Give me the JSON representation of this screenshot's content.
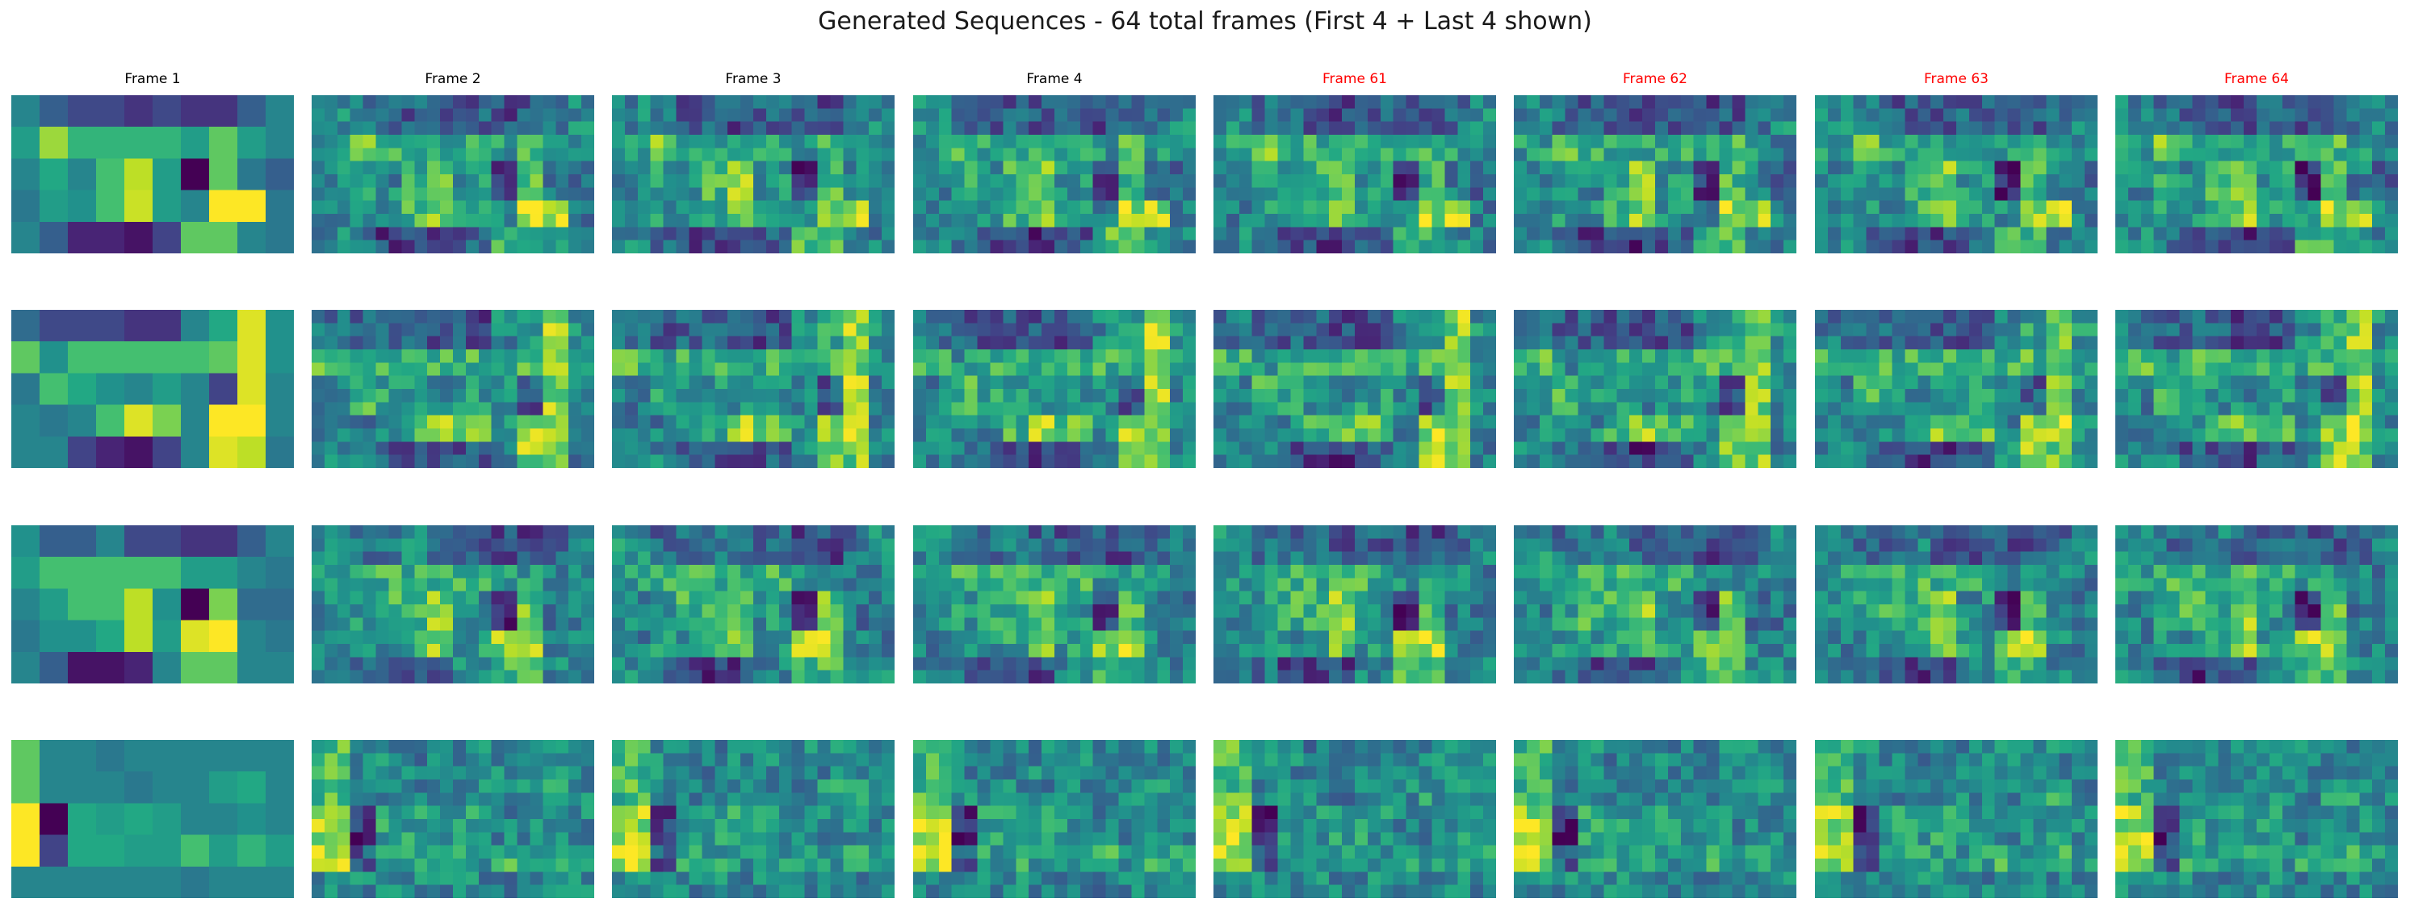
{
  "figure": {
    "title": "Generated Sequences - 64 total frames (First 4 + Last 4 shown)"
  },
  "colors": {
    "title": "#1a1a1a",
    "first_label": "#000000",
    "last_label": "#ff0000",
    "colormap": "viridis"
  },
  "chart_data": {
    "type": "heatmap",
    "title": "Generated Sequences - 64 total frames (First 4 + Last 4 shown)",
    "colormap": "viridis",
    "axes_visible": false,
    "columns": [
      {
        "label": "Frame 1",
        "color": "#000000"
      },
      {
        "label": "Frame 2",
        "color": "#000000"
      },
      {
        "label": "Frame 3",
        "color": "#000000"
      },
      {
        "label": "Frame 4",
        "color": "#000000"
      },
      {
        "label": "Frame 61",
        "color": "#ff0000"
      },
      {
        "label": "Frame 62",
        "color": "#ff0000"
      },
      {
        "label": "Frame 63",
        "color": "#ff0000"
      },
      {
        "label": "Frame 64",
        "color": "#ff0000"
      }
    ],
    "sequences": [
      {
        "frame1": [
          [
            0.45,
            0.3,
            0.22,
            0.22,
            0.15,
            0.22,
            0.15,
            0.15,
            0.3,
            0.45
          ],
          [
            0.55,
            0.85,
            0.65,
            0.65,
            0.65,
            0.65,
            0.55,
            0.75,
            0.55,
            0.45
          ],
          [
            0.45,
            0.6,
            0.45,
            0.7,
            0.9,
            0.55,
            0.0,
            0.75,
            0.4,
            0.3
          ],
          [
            0.4,
            0.55,
            0.5,
            0.7,
            0.92,
            0.55,
            0.45,
            1.0,
            1.0,
            0.4
          ],
          [
            0.45,
            0.3,
            0.1,
            0.1,
            0.05,
            0.2,
            0.75,
            0.75,
            0.45,
            0.4
          ]
        ]
      },
      {
        "frame1": [
          [
            0.35,
            0.22,
            0.22,
            0.22,
            0.15,
            0.15,
            0.45,
            0.6,
            0.95,
            0.5
          ],
          [
            0.75,
            0.5,
            0.7,
            0.7,
            0.7,
            0.7,
            0.7,
            0.75,
            0.95,
            0.5
          ],
          [
            0.4,
            0.7,
            0.6,
            0.5,
            0.45,
            0.55,
            0.45,
            0.2,
            0.95,
            0.45
          ],
          [
            0.45,
            0.4,
            0.45,
            0.7,
            0.95,
            0.8,
            0.45,
            1.0,
            1.0,
            0.45
          ],
          [
            0.45,
            0.45,
            0.2,
            0.1,
            0.05,
            0.2,
            0.45,
            0.95,
            0.9,
            0.4
          ]
        ]
      },
      {
        "frame1": [
          [
            0.5,
            0.3,
            0.3,
            0.45,
            0.22,
            0.22,
            0.15,
            0.15,
            0.3,
            0.45
          ],
          [
            0.55,
            0.7,
            0.7,
            0.7,
            0.7,
            0.7,
            0.55,
            0.55,
            0.45,
            0.4
          ],
          [
            0.45,
            0.55,
            0.7,
            0.7,
            0.9,
            0.5,
            0.0,
            0.8,
            0.35,
            0.35
          ],
          [
            0.4,
            0.5,
            0.5,
            0.6,
            0.9,
            0.55,
            0.95,
            1.0,
            0.45,
            0.4
          ],
          [
            0.45,
            0.3,
            0.05,
            0.05,
            0.1,
            0.45,
            0.75,
            0.75,
            0.45,
            0.45
          ]
        ]
      },
      {
        "frame1": [
          [
            0.75,
            0.45,
            0.45,
            0.4,
            0.45,
            0.45,
            0.45,
            0.45,
            0.45,
            0.45
          ],
          [
            0.75,
            0.45,
            0.45,
            0.45,
            0.4,
            0.45,
            0.45,
            0.55,
            0.6,
            0.45
          ],
          [
            1.0,
            0.0,
            0.6,
            0.55,
            0.6,
            0.55,
            0.45,
            0.45,
            0.5,
            0.45
          ],
          [
            1.0,
            0.2,
            0.6,
            0.6,
            0.55,
            0.55,
            0.7,
            0.55,
            0.65,
            0.55
          ],
          [
            0.45,
            0.45,
            0.45,
            0.45,
            0.45,
            0.45,
            0.4,
            0.45,
            0.45,
            0.45
          ]
        ]
      }
    ]
  }
}
